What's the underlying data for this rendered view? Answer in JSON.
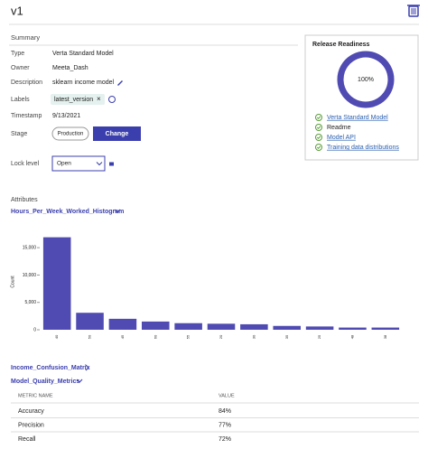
{
  "header": {
    "title": "v1"
  },
  "summary": {
    "heading": "Summary",
    "fields": [
      {
        "label": "Type",
        "value": "Verta Standard Model"
      },
      {
        "label": "Owner",
        "value": "Meeta_Dash"
      },
      {
        "label": "Description",
        "value": "sklearn income model"
      },
      {
        "label": "Labels",
        "value": "latest_version"
      },
      {
        "label": "Timestamp",
        "value": "9/13/2021"
      },
      {
        "label": "Stage",
        "value": "Production",
        "button": "Change"
      },
      {
        "label": "Lock level",
        "value": "Open"
      }
    ]
  },
  "release_readiness": {
    "title": "Release Readiness",
    "value": 100,
    "value_label": "100%",
    "items": [
      "Verta Standard Model",
      "Readme",
      "Model API",
      "Training data distributions"
    ]
  },
  "attributes": {
    "heading": "Attributes",
    "selected": "Hours_Per_Week_Worked_Histogram"
  },
  "histogram": {
    "type": "bar",
    "y_label": "Count",
    "categories": [
      "40",
      "50",
      "45",
      "60",
      "55",
      "20",
      "30",
      "35",
      "25",
      "48",
      "38"
    ],
    "values": [
      16900,
      3100,
      2000,
      1500,
      1200,
      1100,
      1000,
      700,
      600,
      400,
      400
    ],
    "color": "#4f4bb3",
    "ylim": [
      0,
      17500
    ],
    "yticks": [
      0,
      {
        "value": 5000,
        "label": "5,000"
      },
      {
        "value": 10000,
        "label": "10,000"
      },
      {
        "value": 15000,
        "label": "15,000"
      }
    ]
  },
  "sections": [
    "Income_Confusion_Matrix",
    "Model_Quality_Metrics"
  ],
  "table": {
    "columns": [
      "METRIC NAME",
      "VALUE"
    ],
    "rows": [
      [
        "Accuracy",
        "84%"
      ],
      [
        "Precision",
        "77%"
      ],
      [
        "Recall",
        "72%"
      ]
    ]
  }
}
